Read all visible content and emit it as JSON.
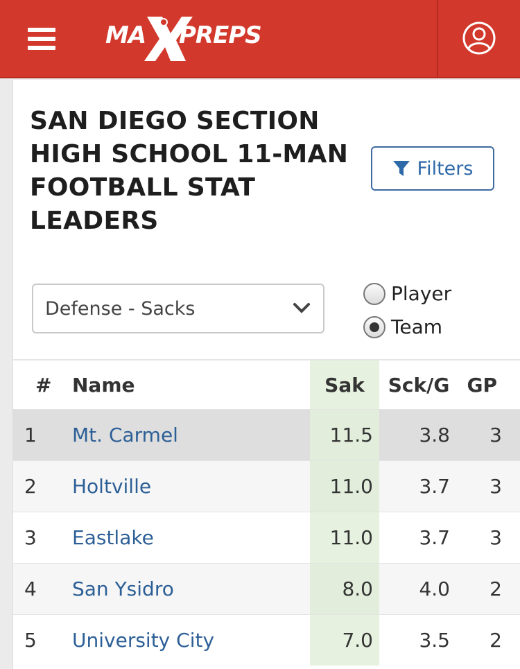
{
  "header": {
    "logo_text": "MAXPREPS"
  },
  "page": {
    "title": "SAN DIEGO SECTION HIGH SCHOOL 11-MAN FOOTBALL STAT LEADERS",
    "filters_label": "Filters"
  },
  "stat_select": {
    "value": "Defense - Sacks"
  },
  "view_toggle": {
    "player_label": "Player",
    "team_label": "Team",
    "selected": "Team"
  },
  "table": {
    "columns": [
      "#",
      "Name",
      "Sak",
      "Sck/G",
      "GP"
    ],
    "rows": [
      {
        "rank": "1",
        "name": "Mt. Carmel",
        "sak": "11.5",
        "sckg": "3.8",
        "gp": "3"
      },
      {
        "rank": "2",
        "name": "Holtville",
        "sak": "11.0",
        "sckg": "3.7",
        "gp": "3"
      },
      {
        "rank": "3",
        "name": "Eastlake",
        "sak": "11.0",
        "sckg": "3.7",
        "gp": "3"
      },
      {
        "rank": "4",
        "name": "San Ysidro",
        "sak": "8.0",
        "sckg": "4.0",
        "gp": "2"
      },
      {
        "rank": "5",
        "name": "University City",
        "sak": "7.0",
        "sckg": "3.5",
        "gp": "2"
      }
    ]
  },
  "colors": {
    "brand_red": "#d2382b",
    "link_blue": "#2c5f96",
    "highlight_green": "#e6f2df"
  }
}
